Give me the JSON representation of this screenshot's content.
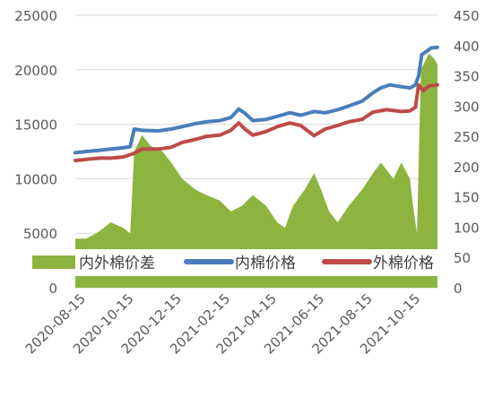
{
  "chart_data": {
    "type": "area+line",
    "x_ticks": [
      "2020-08-15",
      "2020-10-15",
      "2020-12-15",
      "2021-02-15",
      "2021-04-15",
      "2021-06-15",
      "2021-08-15",
      "2021-10-15"
    ],
    "x_range": [
      "2020-08-01",
      "2021-11-05"
    ],
    "left_axis": {
      "ticks": [
        "0",
        "5000",
        "10000",
        "15000",
        "20000",
        "25000"
      ],
      "ylim": [
        0,
        25000
      ]
    },
    "right_axis": {
      "ticks": [
        "0",
        "50",
        "100",
        "150",
        "200",
        "250",
        "300",
        "350",
        "400",
        "450"
      ],
      "ylim": [
        0,
        450
      ]
    },
    "legend": {
      "placement": "inside-bottom-left"
    },
    "series": [
      {
        "name": "内外棉价差",
        "kind": "area",
        "axis": "left",
        "color": "#8DB43E",
        "points": [
          [
            "2020-08-01",
            4500
          ],
          [
            "2020-08-15",
            4500
          ],
          [
            "2020-09-01",
            5200
          ],
          [
            "2020-09-15",
            6000
          ],
          [
            "2020-10-01",
            5500
          ],
          [
            "2020-10-10",
            5000
          ],
          [
            "2020-10-15",
            12500
          ],
          [
            "2020-10-25",
            14000
          ],
          [
            "2020-11-05",
            13000
          ],
          [
            "2020-11-20",
            12500
          ],
          [
            "2020-12-01",
            11500
          ],
          [
            "2020-12-15",
            10000
          ],
          [
            "2021-01-01",
            9000
          ],
          [
            "2021-01-15",
            8500
          ],
          [
            "2021-02-01",
            8000
          ],
          [
            "2021-02-15",
            7000
          ],
          [
            "2021-03-01",
            7500
          ],
          [
            "2021-03-15",
            8500
          ],
          [
            "2021-04-01",
            7500
          ],
          [
            "2021-04-15",
            6000
          ],
          [
            "2021-04-25",
            5500
          ],
          [
            "2021-05-05",
            7500
          ],
          [
            "2021-05-20",
            9000
          ],
          [
            "2021-06-01",
            10500
          ],
          [
            "2021-06-10",
            9000
          ],
          [
            "2021-06-20",
            7000
          ],
          [
            "2021-07-01",
            6000
          ],
          [
            "2021-07-15",
            7500
          ],
          [
            "2021-08-01",
            9000
          ],
          [
            "2021-08-15",
            10500
          ],
          [
            "2021-08-25",
            11500
          ],
          [
            "2021-09-10",
            10000
          ],
          [
            "2021-09-20",
            11500
          ],
          [
            "2021-10-01",
            10000
          ],
          [
            "2021-10-05",
            7500
          ],
          [
            "2021-10-10",
            5000
          ],
          [
            "2021-10-15",
            20000
          ],
          [
            "2021-10-25",
            21500
          ],
          [
            "2021-11-01",
            21000
          ],
          [
            "2021-11-05",
            20500
          ]
        ]
      },
      {
        "name": "内棉价格",
        "kind": "line",
        "axis": "right",
        "color": "#4A7EBB",
        "points": [
          [
            "2020-08-01",
            223
          ],
          [
            "2020-08-15",
            225
          ],
          [
            "2020-09-01",
            227
          ],
          [
            "2020-09-15",
            229
          ],
          [
            "2020-10-01",
            231
          ],
          [
            "2020-10-10",
            233
          ],
          [
            "2020-10-15",
            262
          ],
          [
            "2020-10-25",
            260
          ],
          [
            "2020-11-15",
            259
          ],
          [
            "2020-12-01",
            262
          ],
          [
            "2020-12-15",
            266
          ],
          [
            "2021-01-01",
            271
          ],
          [
            "2021-01-15",
            274
          ],
          [
            "2021-02-01",
            276
          ],
          [
            "2021-02-15",
            281
          ],
          [
            "2021-02-25",
            295
          ],
          [
            "2021-03-05",
            288
          ],
          [
            "2021-03-15",
            276
          ],
          [
            "2021-04-01",
            278
          ],
          [
            "2021-04-15",
            283
          ],
          [
            "2021-05-01",
            289
          ],
          [
            "2021-05-15",
            285
          ],
          [
            "2021-06-01",
            291
          ],
          [
            "2021-06-15",
            289
          ],
          [
            "2021-07-01",
            294
          ],
          [
            "2021-07-15",
            300
          ],
          [
            "2021-08-01",
            308
          ],
          [
            "2021-08-15",
            322
          ],
          [
            "2021-08-25",
            330
          ],
          [
            "2021-09-05",
            335
          ],
          [
            "2021-09-20",
            332
          ],
          [
            "2021-10-01",
            330
          ],
          [
            "2021-10-08",
            335
          ],
          [
            "2021-10-12",
            350
          ],
          [
            "2021-10-16",
            385
          ],
          [
            "2021-10-22",
            390
          ],
          [
            "2021-10-28",
            396
          ],
          [
            "2021-11-05",
            397
          ]
        ]
      },
      {
        "name": "外棉价格",
        "kind": "line",
        "axis": "right",
        "color": "#BE4B48",
        "points": [
          [
            "2020-08-01",
            210
          ],
          [
            "2020-08-15",
            212
          ],
          [
            "2020-09-01",
            214
          ],
          [
            "2020-09-15",
            214
          ],
          [
            "2020-10-01",
            216
          ],
          [
            "2020-10-15",
            222
          ],
          [
            "2020-10-25",
            229
          ],
          [
            "2020-11-15",
            229
          ],
          [
            "2020-12-01",
            232
          ],
          [
            "2020-12-15",
            240
          ],
          [
            "2021-01-01",
            245
          ],
          [
            "2021-01-15",
            250
          ],
          [
            "2021-02-01",
            252
          ],
          [
            "2021-02-15",
            260
          ],
          [
            "2021-02-25",
            272
          ],
          [
            "2021-03-05",
            262
          ],
          [
            "2021-03-15",
            252
          ],
          [
            "2021-04-01",
            258
          ],
          [
            "2021-04-15",
            266
          ],
          [
            "2021-05-01",
            272
          ],
          [
            "2021-05-15",
            268
          ],
          [
            "2021-06-01",
            251
          ],
          [
            "2021-06-15",
            262
          ],
          [
            "2021-07-01",
            268
          ],
          [
            "2021-07-15",
            274
          ],
          [
            "2021-08-01",
            278
          ],
          [
            "2021-08-15",
            290
          ],
          [
            "2021-09-01",
            294
          ],
          [
            "2021-09-20",
            291
          ],
          [
            "2021-10-01",
            292
          ],
          [
            "2021-10-08",
            298
          ],
          [
            "2021-10-12",
            335
          ],
          [
            "2021-10-18",
            325
          ],
          [
            "2021-10-25",
            333
          ],
          [
            "2021-11-05",
            335
          ]
        ]
      }
    ]
  }
}
